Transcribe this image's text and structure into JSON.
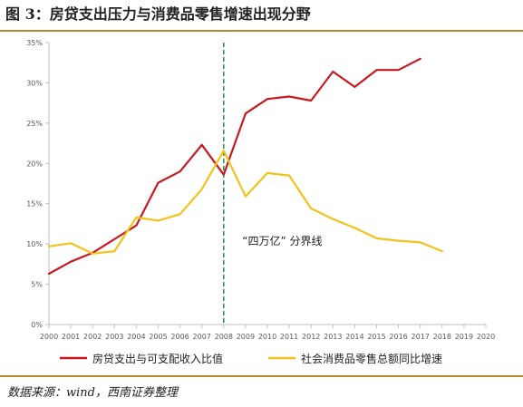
{
  "figure": {
    "label": "图 3：",
    "title": "房贷支出压力与消费品零售增速出现分野",
    "source": "数据来源：wind，西南证券整理"
  },
  "chart_data": {
    "type": "line",
    "title": "房贷支出压力与消费品零售增速出现分野",
    "xlabel": "",
    "ylabel": "",
    "x": [
      2000,
      2001,
      2002,
      2003,
      2004,
      2005,
      2006,
      2007,
      2008,
      2009,
      2010,
      2011,
      2012,
      2013,
      2014,
      2015,
      2016,
      2017,
      2018,
      2019,
      2020
    ],
    "x_tick_labels": [
      "2000",
      "2001",
      "2002",
      "2003",
      "2004",
      "2005",
      "2006",
      "2007",
      "2008",
      "2009",
      "2010",
      "2011",
      "2012",
      "2013",
      "2014",
      "2015",
      "2016",
      "2017",
      "2018",
      "2019",
      "2020"
    ],
    "ylim": [
      0,
      35
    ],
    "y_ticks": [
      0,
      5,
      10,
      15,
      20,
      25,
      30,
      35
    ],
    "y_tick_labels": [
      "0%",
      "5%",
      "10%",
      "15%",
      "20%",
      "25%",
      "30%",
      "35%"
    ],
    "grid": false,
    "legend_position": "bottom",
    "series": [
      {
        "name": "房贷支出与可支配收入比值",
        "color": "#c8191f",
        "x": [
          2000,
          2001,
          2002,
          2003,
          2004,
          2005,
          2006,
          2007,
          2008,
          2009,
          2010,
          2011,
          2012,
          2013,
          2014,
          2015,
          2016,
          2017
        ],
        "values": [
          6.3,
          7.8,
          8.9,
          10.6,
          12.3,
          17.6,
          19.0,
          22.3,
          18.6,
          26.2,
          28.0,
          28.3,
          27.8,
          31.4,
          29.5,
          31.6,
          31.6,
          33.0
        ]
      },
      {
        "name": "社会消费品零售总额同比增速",
        "color": "#f2c31a",
        "x": [
          2000,
          2001,
          2002,
          2003,
          2004,
          2005,
          2006,
          2007,
          2008,
          2009,
          2010,
          2011,
          2012,
          2013,
          2014,
          2015,
          2016,
          2017,
          2018
        ],
        "values": [
          9.7,
          10.1,
          8.8,
          9.1,
          13.3,
          12.9,
          13.7,
          16.8,
          21.6,
          15.9,
          18.8,
          18.5,
          14.4,
          13.1,
          12.0,
          10.7,
          10.4,
          10.2,
          9.1
        ]
      }
    ],
    "annotations": [
      {
        "type": "vertical-line",
        "x": 2008,
        "style": "dashed",
        "color": "#1e8f4e"
      },
      {
        "type": "text",
        "text": "“四万亿” 分界线",
        "x": 2008.85,
        "y": 9.9
      }
    ]
  }
}
